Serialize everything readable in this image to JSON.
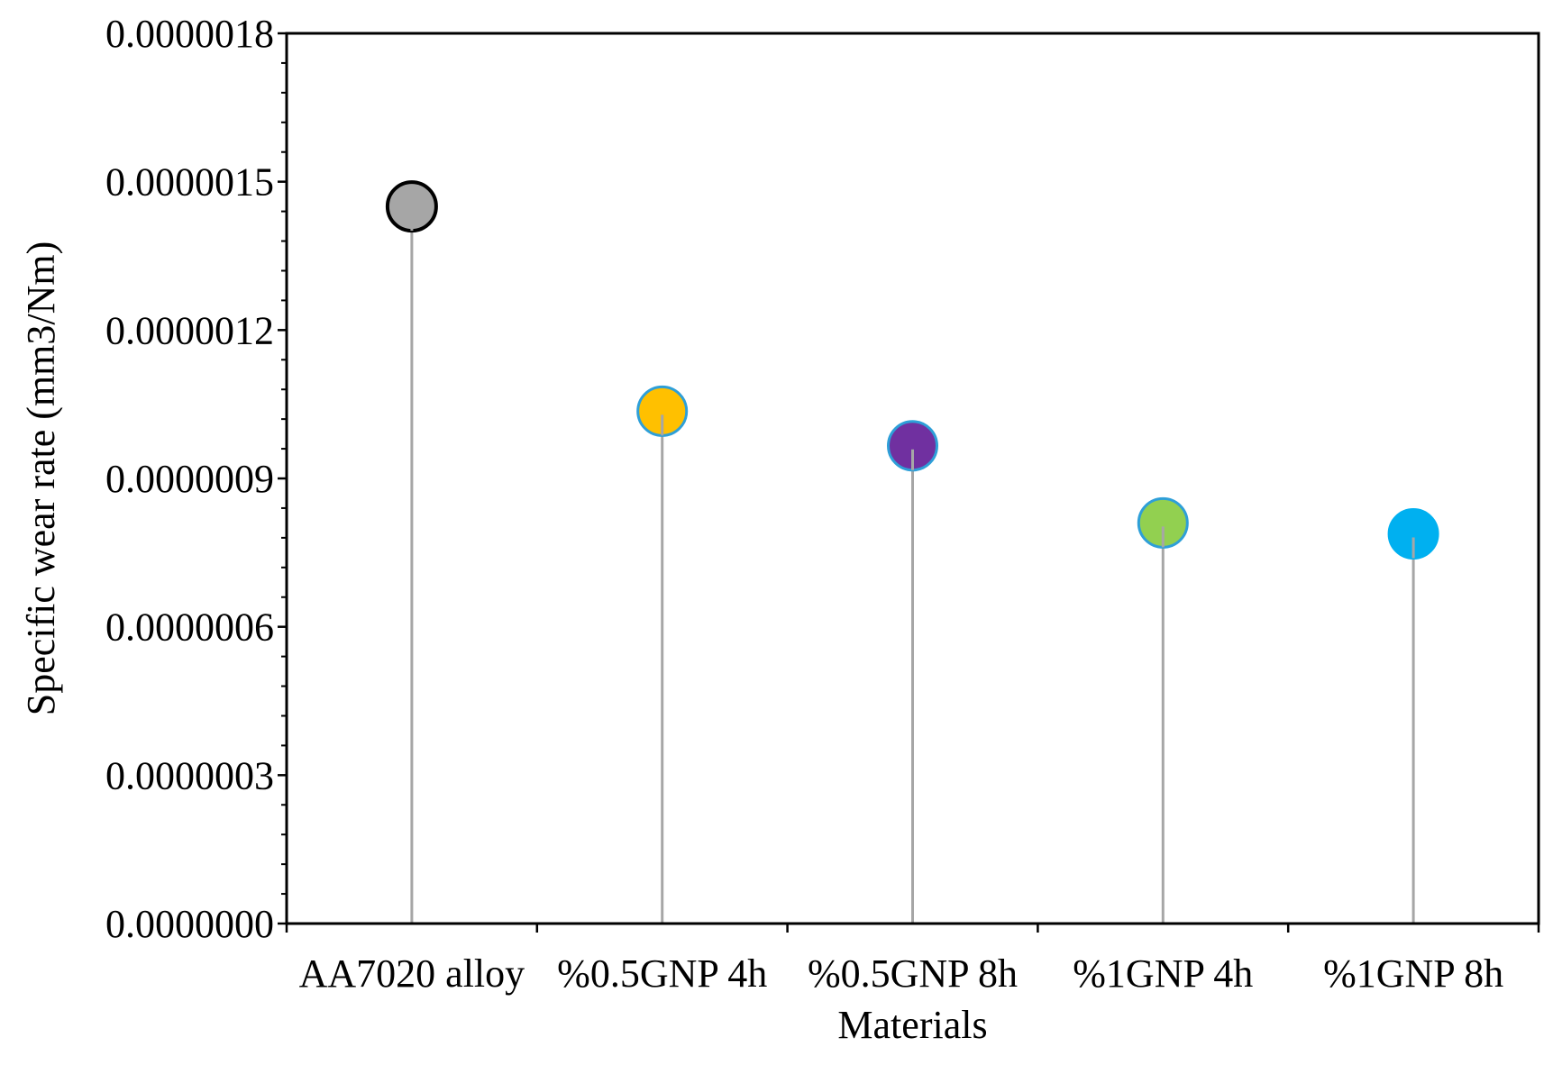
{
  "chart_data": {
    "type": "lollipop",
    "title": "",
    "xlabel": "Materials",
    "ylabel": "Specific wear rate (mm3/Nm)",
    "categories": [
      "AA7020 alloy",
      "%0.5GNP 4h",
      "%0.5GNP 8h",
      "%1GNP 4h",
      "%1GNP 8h"
    ],
    "values": [
      1.45e-06,
      1.036e-06,
      9.66e-07,
      8.1e-07,
      7.88e-07
    ],
    "ylim": [
      0,
      1.8e-06
    ],
    "yticks": [
      "0.0000000",
      "0.0000003",
      "0.0000006",
      "0.0000009",
      "0.0000012",
      "0.0000015",
      "0.0000018"
    ],
    "ytick_values": [
      0,
      3e-07,
      6e-07,
      9e-07,
      1.2e-06,
      1.5e-06,
      1.8e-06
    ],
    "minor_ticks_per_major": 5,
    "grid": false,
    "legend": "none",
    "colors": {
      "markers": [
        "#a6a6a6",
        "#ffc000",
        "#7030a0",
        "#92d050",
        "#00b0f0"
      ],
      "marker_edges": [
        "#000000",
        "#2e9fd8",
        "#2e9fd8",
        "#2e9fd8",
        "#00b0f0"
      ],
      "stems": "#a6a6a6",
      "axes": "#000000"
    }
  }
}
